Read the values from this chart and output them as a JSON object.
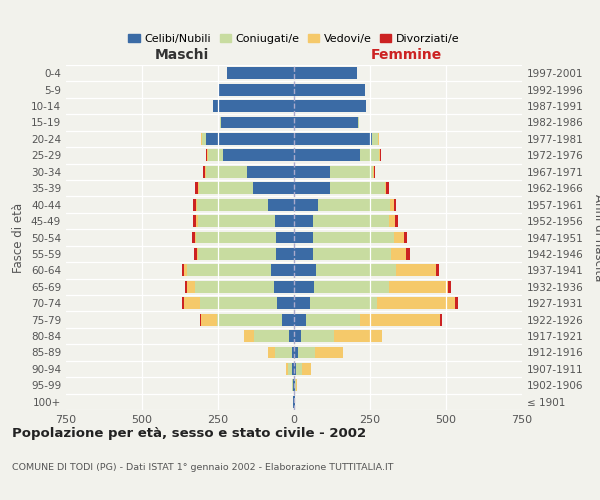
{
  "age_groups": [
    "100+",
    "95-99",
    "90-94",
    "85-89",
    "80-84",
    "75-79",
    "70-74",
    "65-69",
    "60-64",
    "55-59",
    "50-54",
    "45-49",
    "40-44",
    "35-39",
    "30-34",
    "25-29",
    "20-24",
    "15-19",
    "10-14",
    "5-9",
    "0-4"
  ],
  "birth_years": [
    "≤ 1901",
    "1902-1906",
    "1907-1911",
    "1912-1916",
    "1917-1921",
    "1922-1926",
    "1927-1931",
    "1932-1936",
    "1937-1941",
    "1942-1946",
    "1947-1951",
    "1952-1956",
    "1957-1961",
    "1962-1966",
    "1967-1971",
    "1972-1976",
    "1977-1981",
    "1982-1986",
    "1987-1991",
    "1992-1996",
    "1997-2001"
  ],
  "maschi_celibi": [
    2,
    3,
    5,
    8,
    18,
    38,
    55,
    65,
    75,
    58,
    58,
    62,
    85,
    135,
    155,
    235,
    290,
    240,
    265,
    250,
    220
  ],
  "maschi_coniugati": [
    0,
    2,
    15,
    55,
    115,
    215,
    255,
    260,
    278,
    258,
    265,
    255,
    235,
    178,
    135,
    48,
    12,
    2,
    0,
    0,
    0
  ],
  "maschi_vedovi": [
    0,
    0,
    5,
    22,
    32,
    52,
    52,
    28,
    8,
    4,
    4,
    4,
    4,
    4,
    4,
    3,
    3,
    0,
    0,
    0,
    0
  ],
  "maschi_divorziati": [
    0,
    0,
    0,
    0,
    0,
    5,
    6,
    5,
    8,
    10,
    10,
    10,
    8,
    8,
    5,
    2,
    0,
    0,
    0,
    0,
    0
  ],
  "femmine_nubili": [
    2,
    3,
    8,
    12,
    22,
    38,
    52,
    65,
    72,
    62,
    62,
    62,
    78,
    118,
    118,
    218,
    258,
    212,
    238,
    232,
    208
  ],
  "femmine_coniugate": [
    0,
    3,
    18,
    58,
    108,
    180,
    220,
    248,
    262,
    258,
    268,
    252,
    238,
    182,
    142,
    62,
    18,
    2,
    0,
    0,
    0
  ],
  "femmine_vedove": [
    0,
    5,
    30,
    92,
    158,
    262,
    258,
    195,
    132,
    50,
    32,
    18,
    12,
    4,
    4,
    3,
    3,
    0,
    0,
    0,
    0
  ],
  "femmine_divorziate": [
    0,
    0,
    0,
    0,
    0,
    8,
    10,
    8,
    10,
    10,
    10,
    10,
    8,
    10,
    4,
    2,
    0,
    0,
    0,
    0,
    0
  ],
  "colors_celibi": "#3b6ba5",
  "colors_coniugati": "#c8dca0",
  "colors_vedovi": "#f5c96a",
  "colors_divorziati": "#cc2222",
  "bg_color": "#f2f2ec",
  "title": "Popolazione per età, sesso e stato civile - 2002",
  "subtitle": "COMUNE DI TODI (PG) - Dati ISTAT 1° gennaio 2002 - Elaborazione TUTTITALIA.IT",
  "legend_labels": [
    "Celibi/Nubili",
    "Coniugati/e",
    "Vedovi/e",
    "Divorziati/e"
  ],
  "xlim": 750
}
